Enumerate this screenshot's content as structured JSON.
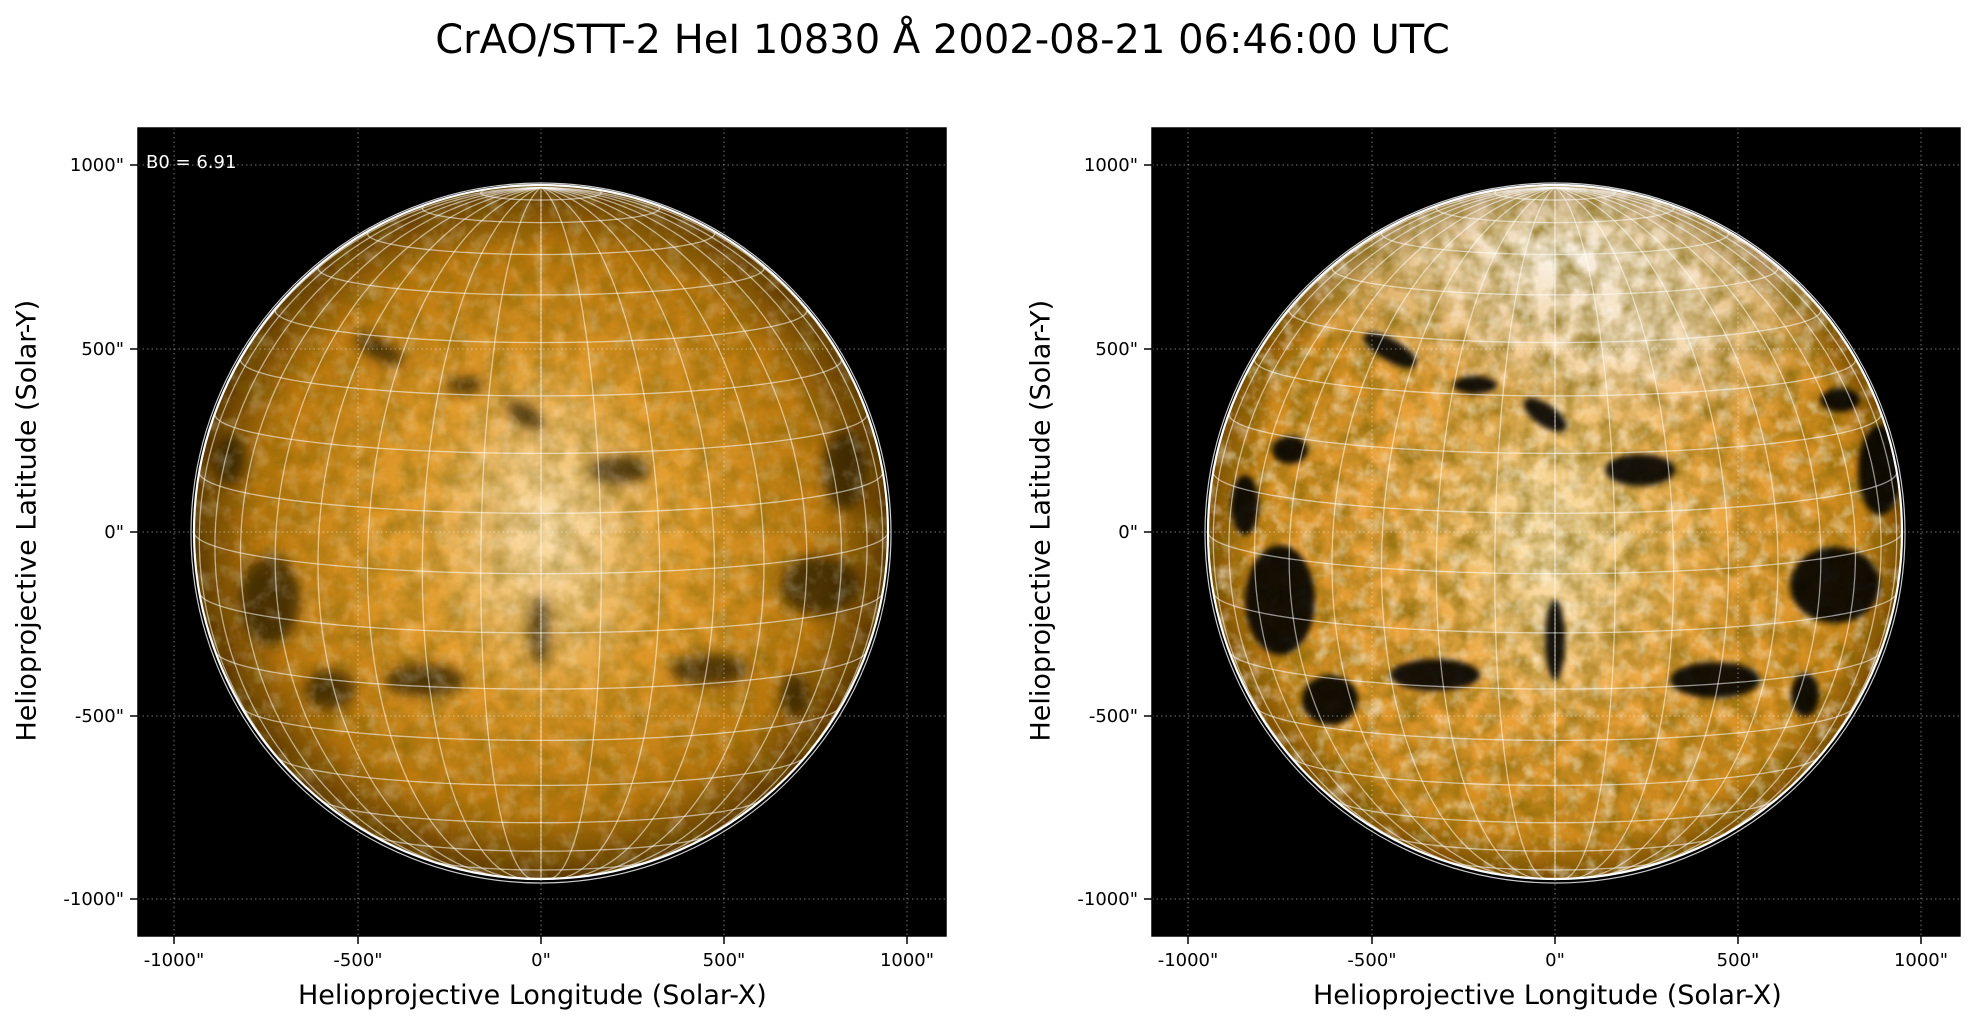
{
  "title": "CrAO/STT-2 HeI 10830 Å 2002-08-21 06:46:00 UTC",
  "colors": {
    "sun_base": "#d48a10",
    "sun_bright": "#f4d9a6",
    "sun_dark": "#3a2400",
    "background": "#000000",
    "grid": "#ffffff"
  },
  "panels": [
    {
      "name": "left",
      "xlabel": "Helioprojective Longitude (Solar-X)",
      "ylabel": "Helioprojective Latitude (Solar-Y)",
      "annotation": "B0 = 6.91",
      "xticks": [
        "-1000\"",
        "-500\"",
        "0\"",
        "500\"",
        "1000\""
      ],
      "yticks": [
        "1000\"",
        "500\"",
        "0\"",
        "-500\"",
        "-1000\""
      ],
      "contrast": "low"
    },
    {
      "name": "right",
      "xlabel": "Helioprojective Longitude (Solar-X)",
      "ylabel": "Helioprojective Latitude (Solar-Y)",
      "annotation": "",
      "xticks": [
        "-1000\"",
        "-500\"",
        "0\"",
        "500\"",
        "1000\""
      ],
      "yticks": [
        "1000\"",
        "500\"",
        "0\"",
        "-500\"",
        "-1000\""
      ],
      "contrast": "high"
    }
  ]
}
